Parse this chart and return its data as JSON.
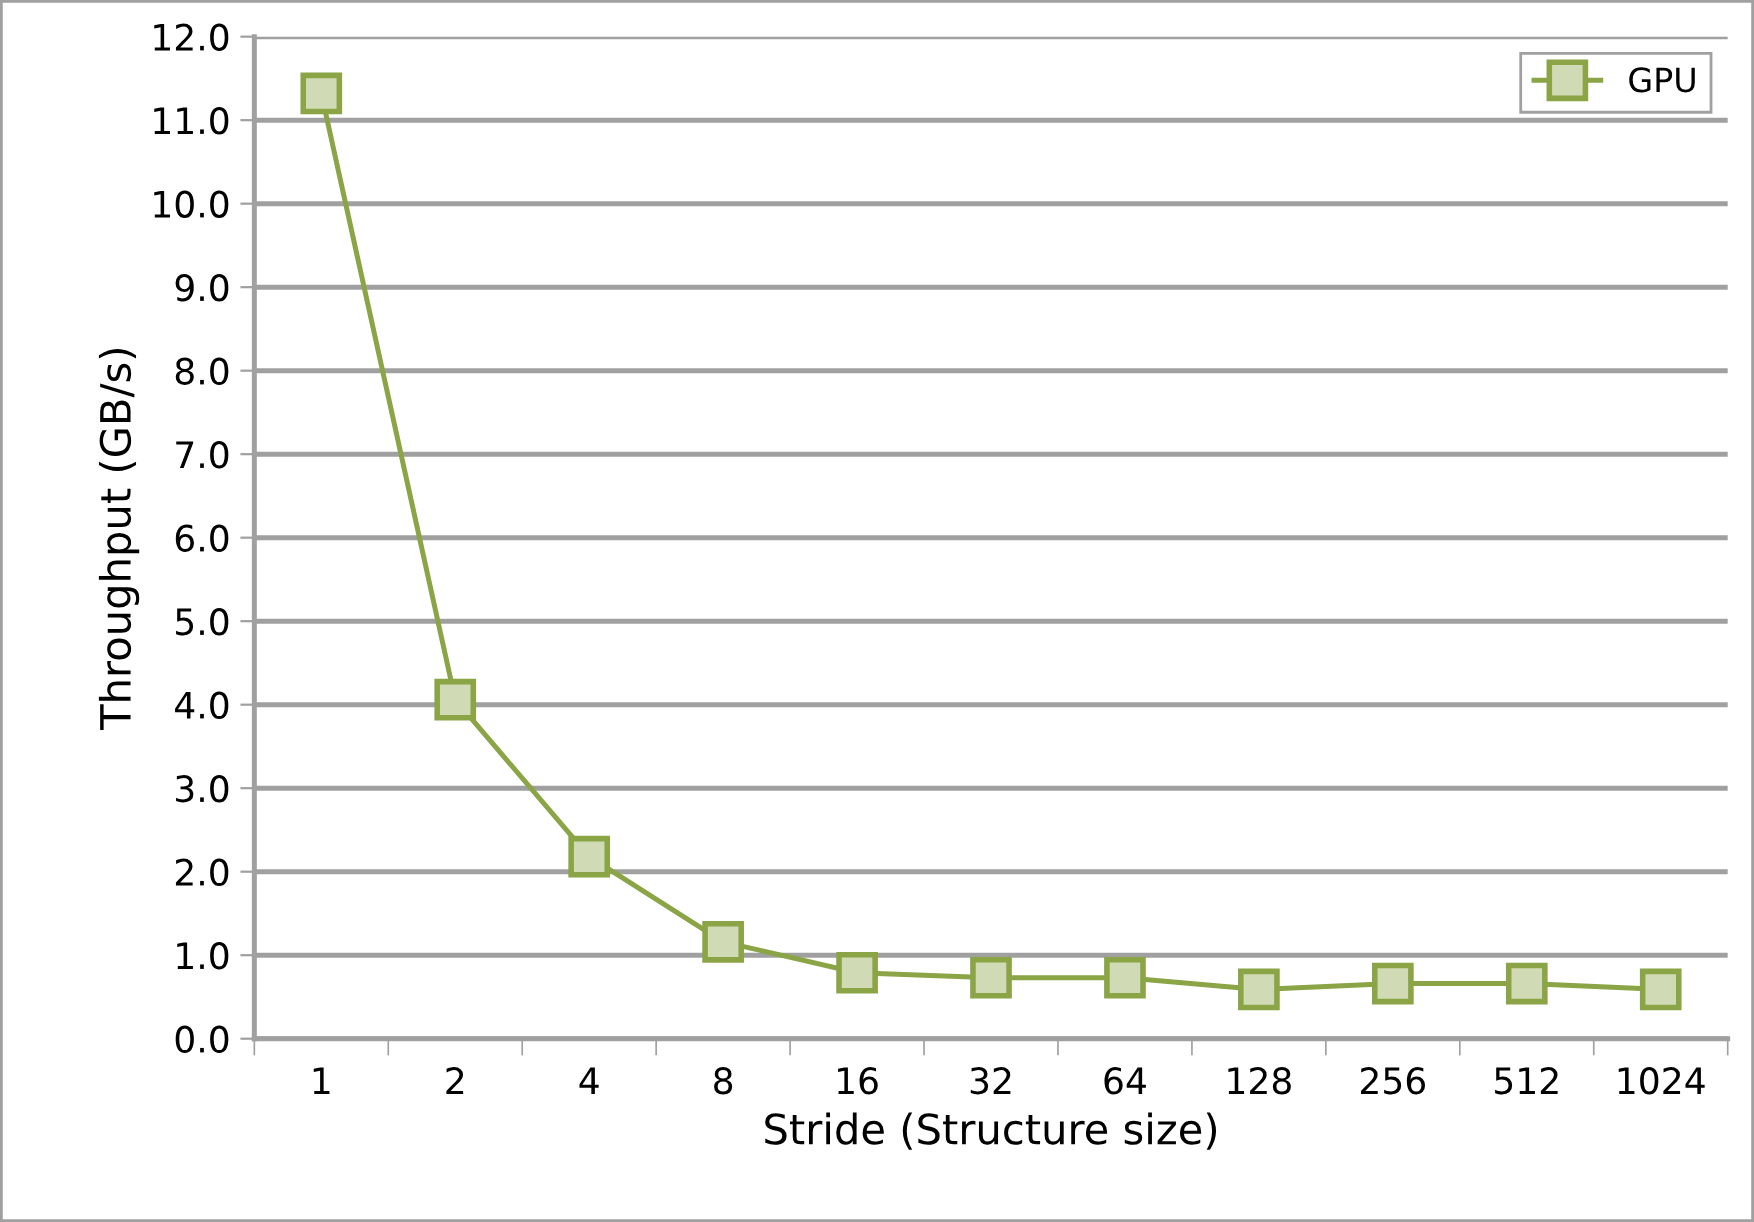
{
  "chart_data": {
    "type": "line",
    "xlabel": "Stride (Structure size)",
    "ylabel": "Throughput (GB/s)",
    "categories": [
      "1",
      "2",
      "4",
      "8",
      "16",
      "32",
      "64",
      "128",
      "256",
      "512",
      "1024"
    ],
    "series": [
      {
        "name": "GPU",
        "color": "#8aa446",
        "values": [
          11.32,
          4.06,
          2.18,
          1.16,
          0.79,
          0.73,
          0.73,
          0.59,
          0.66,
          0.66,
          0.59
        ]
      }
    ],
    "ylim": [
      0,
      12
    ],
    "yticks": [
      {
        "value": 0,
        "label": "0.0"
      },
      {
        "value": 1,
        "label": "1.0"
      },
      {
        "value": 2,
        "label": "2.0"
      },
      {
        "value": 3,
        "label": "3.0"
      },
      {
        "value": 4,
        "label": "4.0"
      },
      {
        "value": 5,
        "label": "5.0"
      },
      {
        "value": 6,
        "label": "6.0"
      },
      {
        "value": 7,
        "label": "7.0"
      },
      {
        "value": 8,
        "label": "8.0"
      },
      {
        "value": 9,
        "label": "9.0"
      },
      {
        "value": 10,
        "label": "10.0"
      },
      {
        "value": 11,
        "label": "11.0"
      },
      {
        "value": 12,
        "label": "12.0"
      }
    ],
    "grid": "y",
    "legend": "top right",
    "marker": "square",
    "line_style": "solid"
  }
}
